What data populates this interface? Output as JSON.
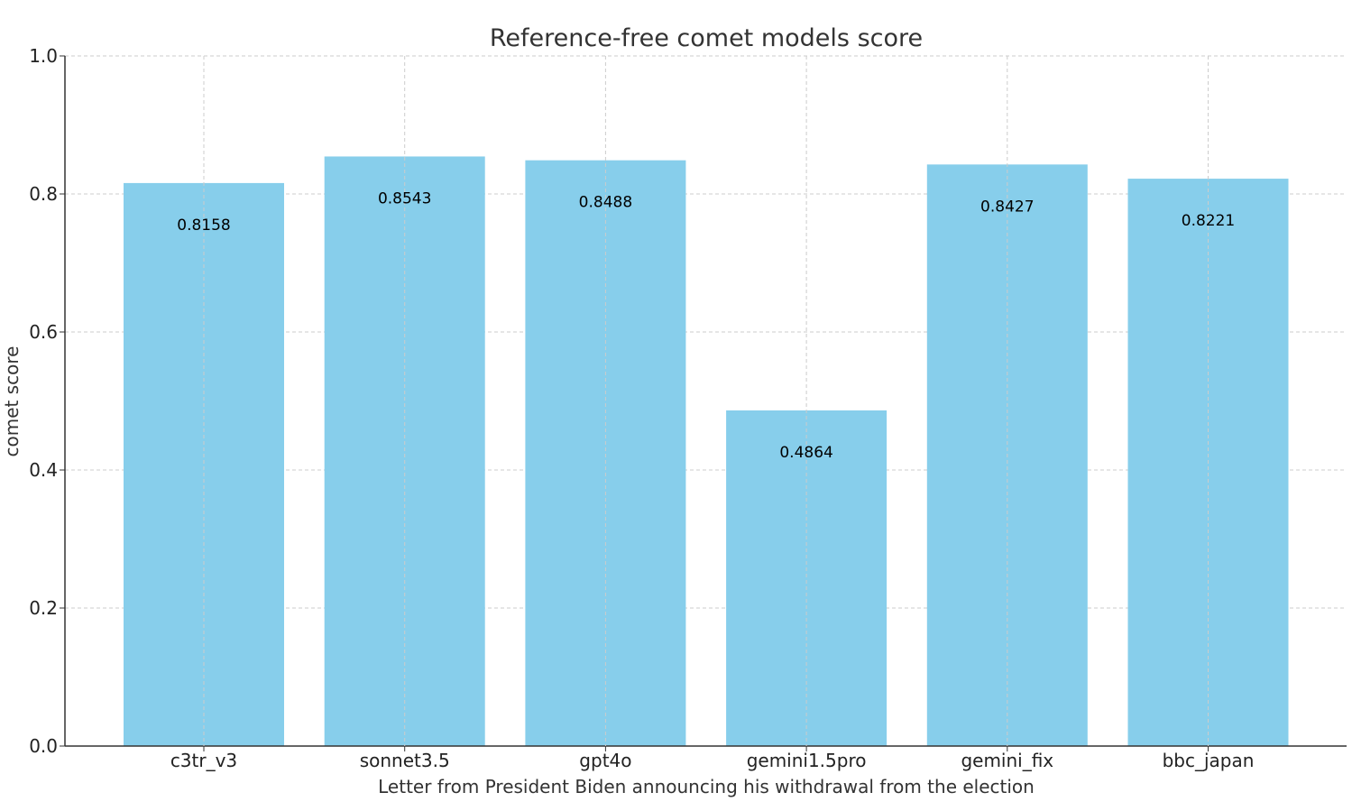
{
  "chart_data": {
    "type": "bar",
    "title": "Reference-free comet models score",
    "xlabel": "Letter from President Biden announcing his withdrawal from the election",
    "ylabel": "comet score",
    "categories": [
      "c3tr_v3",
      "sonnet3.5",
      "gpt4o",
      "gemini1.5pro",
      "gemini_fix",
      "bbc_japan"
    ],
    "values": [
      0.8158,
      0.8543,
      0.8488,
      0.4864,
      0.8427,
      0.8221
    ],
    "value_labels": [
      "0.8158",
      "0.8543",
      "0.8488",
      "0.4864",
      "0.8427",
      "0.8221"
    ],
    "ylim": [
      0,
      1.0
    ],
    "yticks": [
      0.0,
      0.2,
      0.4,
      0.6,
      0.8,
      1.0
    ],
    "ytick_labels": [
      "0.0",
      "0.2",
      "0.4",
      "0.6",
      "0.8",
      "1.0"
    ],
    "grid": true,
    "bar_color": "#87ceeb",
    "grid_color": "#cccccc",
    "text_color": "#333333"
  }
}
